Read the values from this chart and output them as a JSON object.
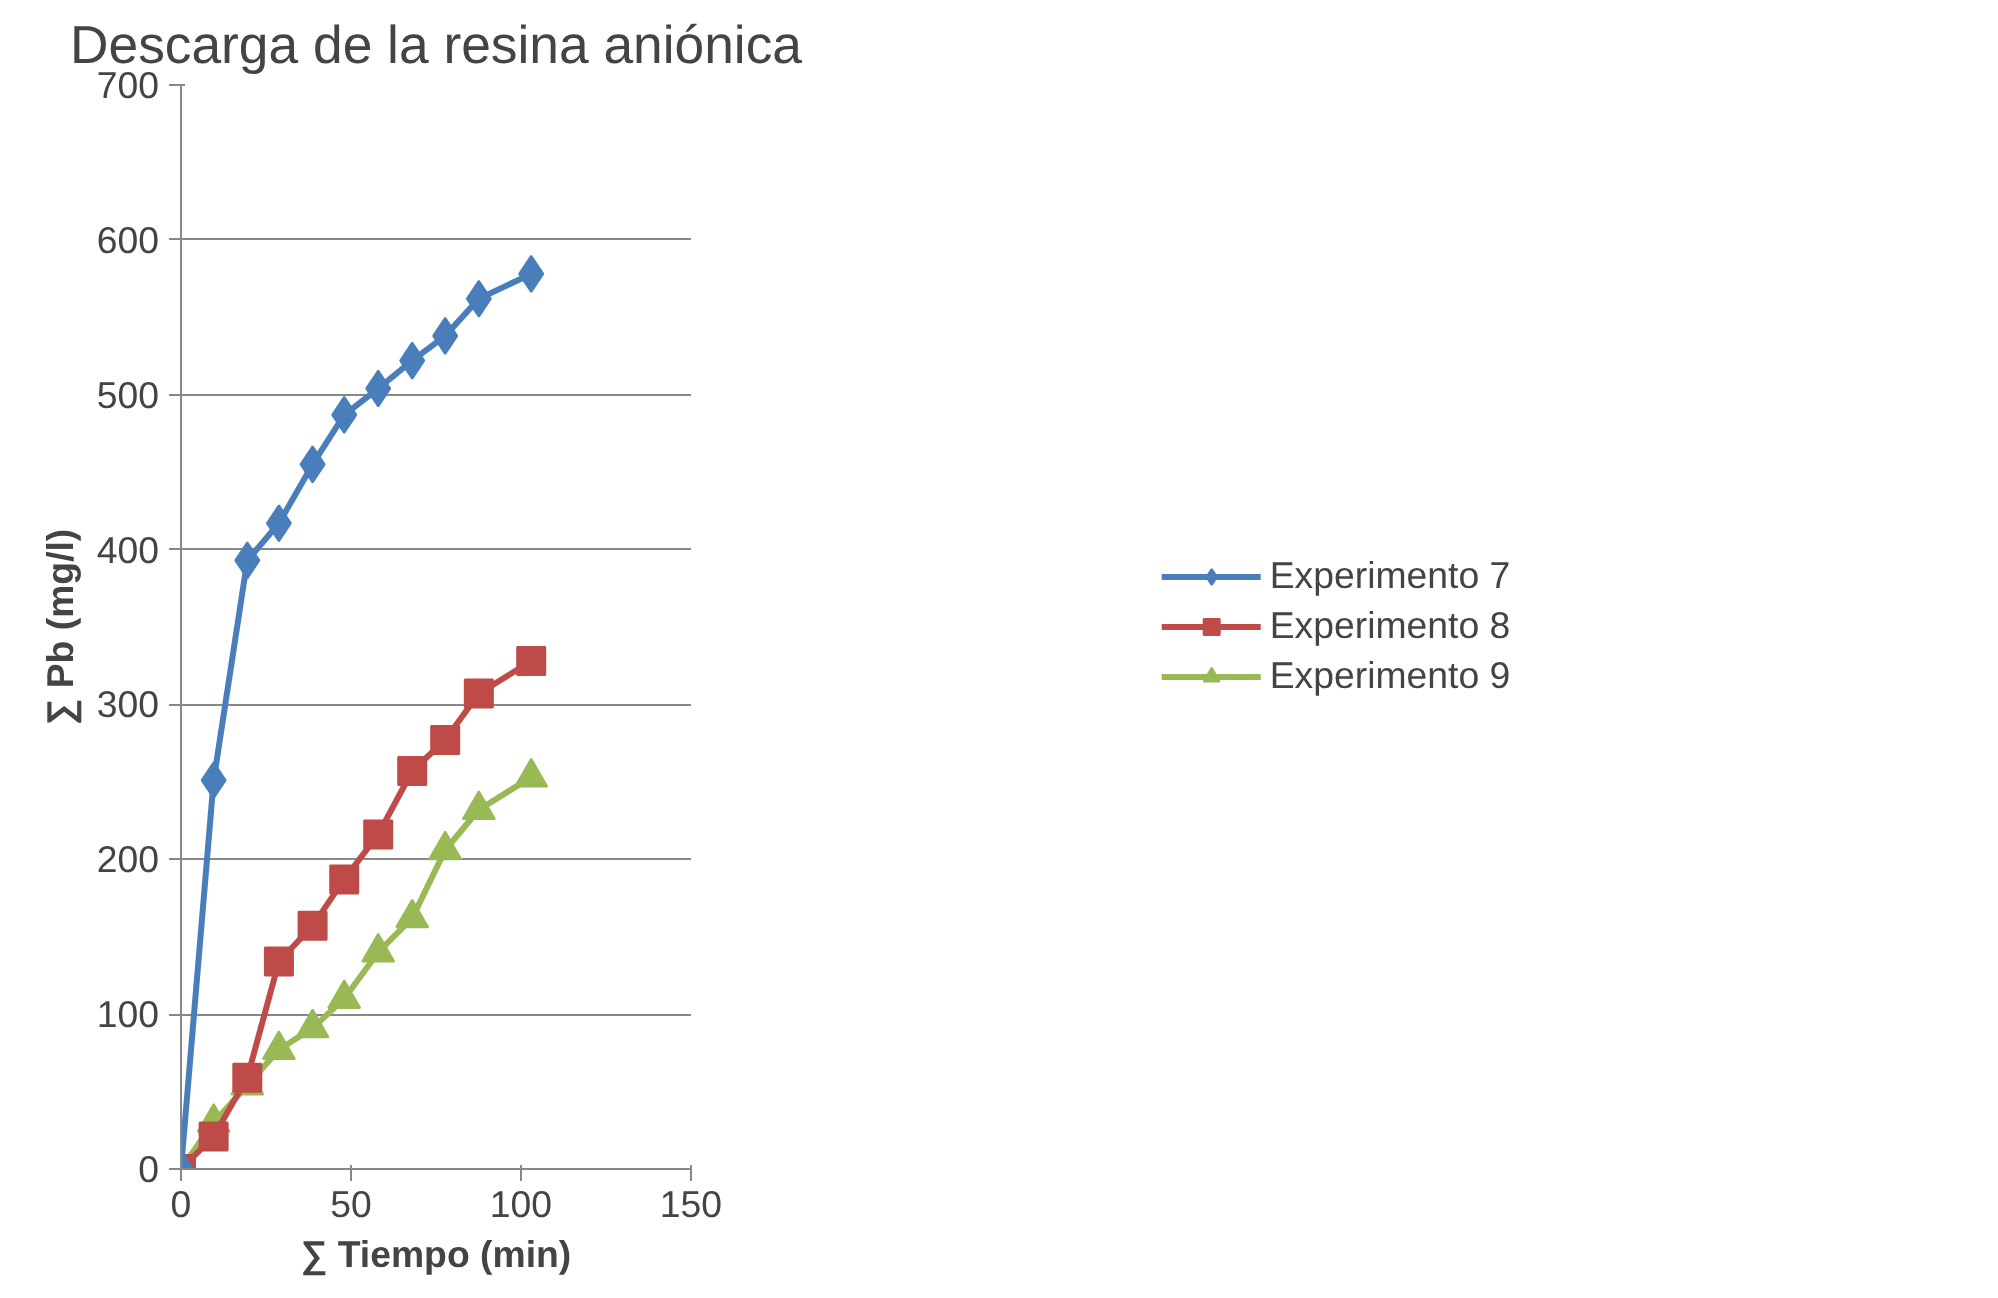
{
  "chart_data": {
    "type": "line",
    "title": "Descarga de la resina aniónica",
    "xlabel": "∑ Tiempo (min)",
    "ylabel": "∑ Pb (mg/l)",
    "x": [
      0,
      9.6,
      19.5,
      28.8,
      38.7,
      48,
      58,
      68,
      77.7,
      87.6,
      103
    ],
    "series": [
      {
        "name": "Experimento 7",
        "color": "#4a7ebb",
        "marker": "diamond",
        "values": [
          0,
          251,
          393,
          417,
          455,
          487,
          504,
          522,
          538,
          562,
          578
        ]
      },
      {
        "name": "Experimento 8",
        "color": "#be4b48",
        "marker": "square",
        "values": [
          0,
          21,
          59,
          134,
          157,
          187,
          216,
          257,
          277,
          307,
          328
        ]
      },
      {
        "name": "Experimento 9",
        "color": "#98b954",
        "marker": "triangle",
        "values": [
          0,
          30,
          54,
          77,
          91,
          110,
          140,
          162,
          206,
          232,
          253
        ]
      }
    ],
    "xlim": [
      0,
      150
    ],
    "xticks": [
      0,
      50,
      100,
      150
    ],
    "ylim": [
      0,
      700
    ],
    "yticks": [
      0,
      100,
      200,
      300,
      400,
      500,
      600,
      700
    ],
    "grid": "y",
    "legend": "right"
  }
}
